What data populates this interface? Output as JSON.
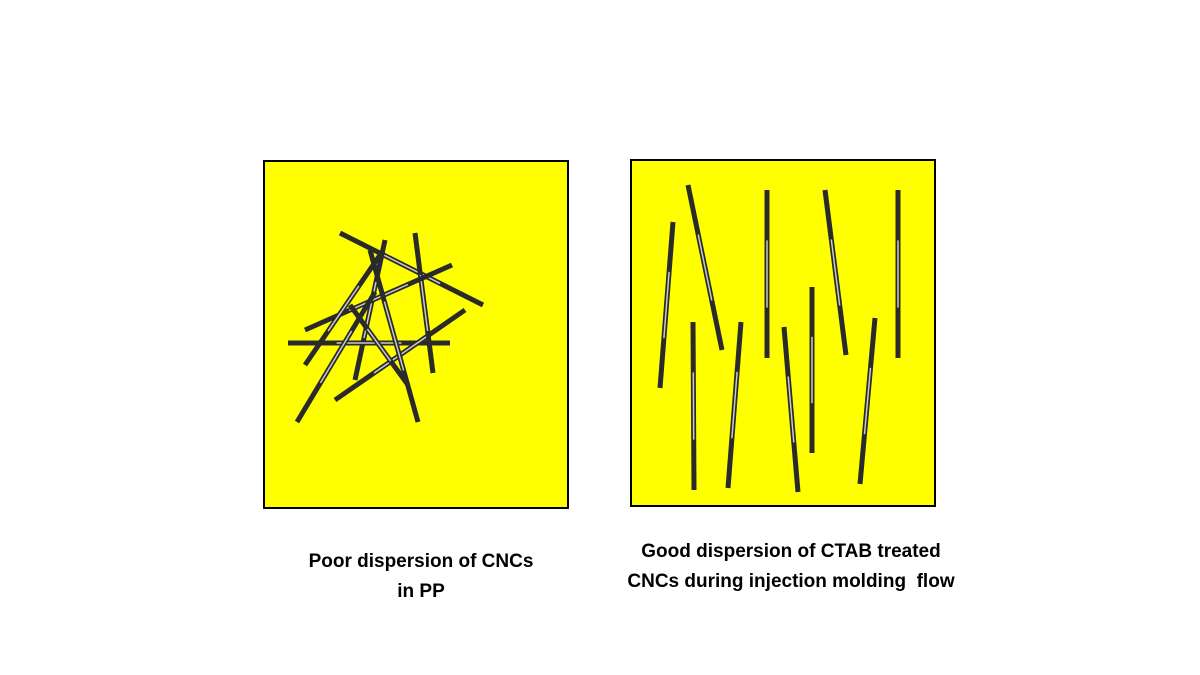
{
  "panels": [
    {
      "caption": [
        "Poor dispersion of CNCs",
        "in PP"
      ]
    },
    {
      "caption": [
        "Good dispersion of CTAB treated",
        "CNCs during injection molding  flow"
      ]
    }
  ]
}
